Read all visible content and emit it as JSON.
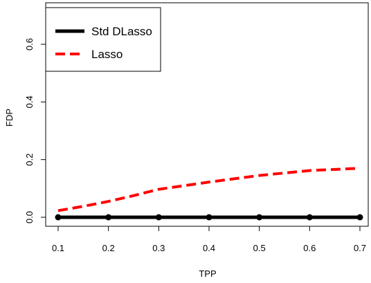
{
  "chart_data": {
    "type": "line",
    "title": "",
    "xlabel": "TPP",
    "ylabel": "FDP",
    "xlim": [
      0.1,
      0.7
    ],
    "ylim": [
      0,
      0.7
    ],
    "x_ticks": [
      0.1,
      0.2,
      0.3,
      0.4,
      0.5,
      0.6,
      0.7
    ],
    "x_tick_labels": [
      "0.1",
      "0.2",
      "0.3",
      "0.4",
      "0.5",
      "0.6",
      "0.7"
    ],
    "y_ticks": [
      0.0,
      0.2,
      0.4,
      0.6
    ],
    "y_tick_labels": [
      "0.0",
      "0.2",
      "0.4",
      "0.6"
    ],
    "grid": false,
    "legend_position": "top-left",
    "series": [
      {
        "name": "Std DLasso",
        "color": "#000000",
        "line_style": "solid",
        "markers": true,
        "x": [
          0.1,
          0.2,
          0.3,
          0.4,
          0.5,
          0.6,
          0.7
        ],
        "y": [
          0.0,
          0.0,
          0.0,
          0.0,
          0.0,
          0.0,
          0.0
        ]
      },
      {
        "name": "Lasso",
        "color": "#ff0000",
        "line_style": "dashed",
        "markers": false,
        "x": [
          0.1,
          0.15,
          0.2,
          0.25,
          0.3,
          0.4,
          0.5,
          0.6,
          0.7
        ],
        "y": [
          0.023,
          0.038,
          0.055,
          0.075,
          0.097,
          0.122,
          0.145,
          0.162,
          0.17
        ]
      }
    ]
  }
}
